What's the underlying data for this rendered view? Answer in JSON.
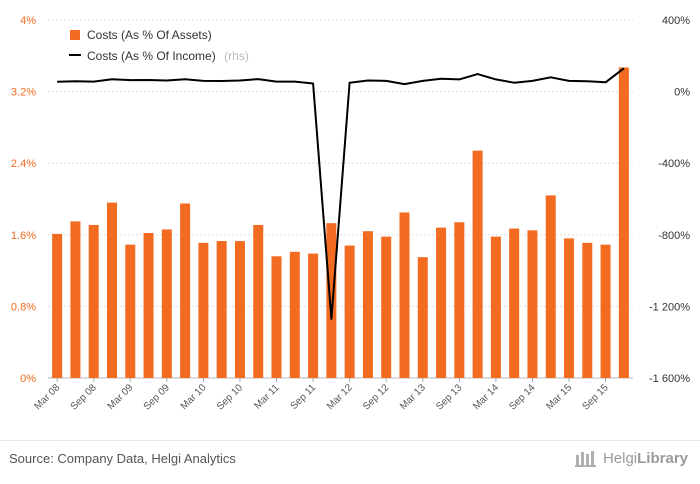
{
  "chart_data": {
    "type": "bar+line",
    "categories": [
      "Mar 08",
      "Jun 08",
      "Sep 08",
      "Dec 08",
      "Mar 09",
      "Jun 09",
      "Sep 09",
      "Dec 09",
      "Mar 10",
      "Jun 10",
      "Sep 10",
      "Dec 10",
      "Mar 11",
      "Jun 11",
      "Sep 11",
      "Dec 11",
      "Mar 12",
      "Jun 12",
      "Sep 12",
      "Dec 12",
      "Mar 13",
      "Jun 13",
      "Sep 13",
      "Dec 13",
      "Mar 14",
      "Jun 14",
      "Sep 14",
      "Dec 14",
      "Mar 15",
      "Jun 15",
      "Sep 15",
      "Dec 15"
    ],
    "x_tick_labels": [
      "Mar 08",
      "Sep 08",
      "Mar 09",
      "Sep 09",
      "Mar 10",
      "Sep 10",
      "Mar 11",
      "Sep 11",
      "Mar 12",
      "Sep 12",
      "Mar 13",
      "Sep 13",
      "Mar 14",
      "Sep 14",
      "Mar 15",
      "Sep 15"
    ],
    "series": [
      {
        "name": "Costs (As % Of Assets)",
        "type": "bar",
        "axis": "left",
        "color": "#f26b21",
        "values": [
          1.61,
          1.75,
          1.71,
          1.96,
          1.49,
          1.62,
          1.66,
          1.95,
          1.51,
          1.53,
          1.53,
          1.71,
          1.36,
          1.41,
          1.39,
          1.73,
          1.48,
          1.64,
          1.58,
          1.85,
          1.35,
          1.68,
          1.74,
          2.54,
          1.58,
          1.67,
          1.65,
          2.04,
          1.56,
          1.51,
          1.49,
          3.47
        ]
      },
      {
        "name": "Costs (As % Of Income)",
        "type": "line",
        "axis": "right",
        "color": "#000000",
        "values": [
          55,
          58,
          56,
          69,
          64,
          65,
          62,
          69,
          60,
          59,
          62,
          70,
          56,
          56,
          45,
          -1270,
          50,
          62,
          60,
          42,
          60,
          72,
          68,
          98,
          68,
          50,
          60,
          80,
          60,
          58,
          52,
          130
        ]
      }
    ],
    "legend": [
      {
        "label": "Costs (As % Of Assets)",
        "suffix": ""
      },
      {
        "label": "Costs (As % Of Income)",
        "suffix": "(rhs)"
      }
    ],
    "y_left": {
      "min": 0,
      "max": 4,
      "ticks": [
        0,
        0.8,
        1.6,
        2.4,
        3.2,
        4
      ],
      "tick_labels": [
        "0%",
        "0.8%",
        "1.6%",
        "2.4%",
        "3.2%",
        "4%"
      ]
    },
    "y_right": {
      "min": -1600,
      "max": 400,
      "ticks": [
        -1600,
        -1200,
        -800,
        -400,
        0,
        400
      ],
      "tick_labels": [
        "-1 600%",
        "-1 200%",
        "-800%",
        "-400%",
        "0%",
        "400%"
      ]
    },
    "grid": true,
    "legend_position": "top-left"
  },
  "footer": {
    "source": "Source: Company Data, Helgi Analytics",
    "brand_regular": "Helgi",
    "brand_bold": "Library"
  }
}
